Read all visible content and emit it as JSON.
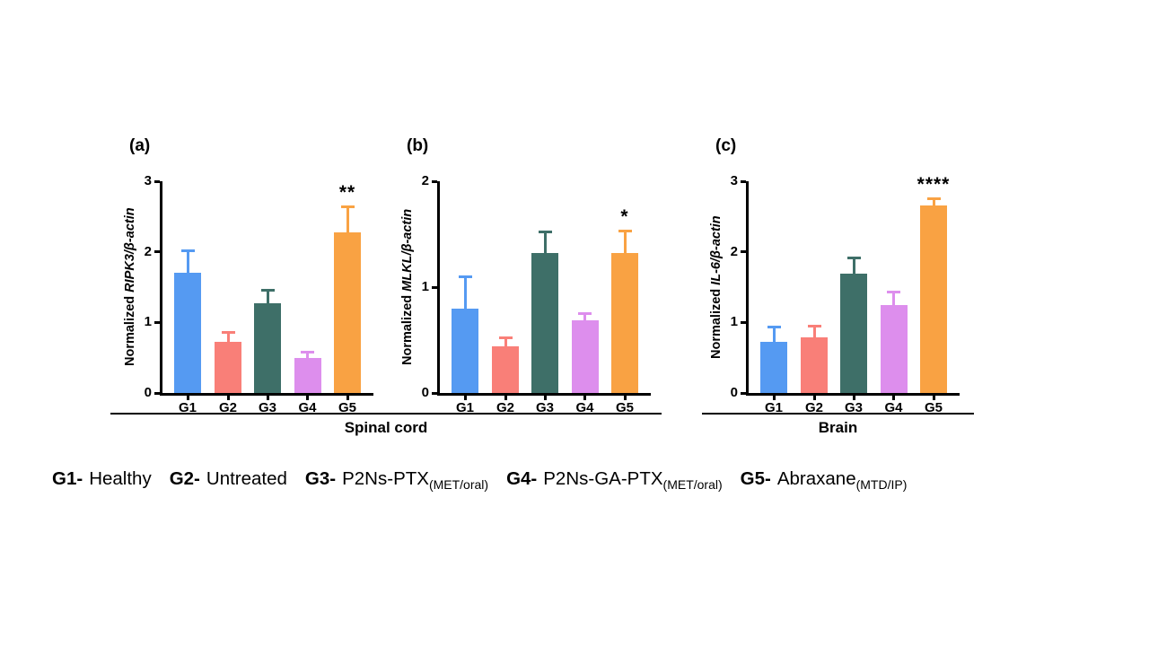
{
  "figure": {
    "group_labels": [
      {
        "label": "Spinal cord"
      },
      {
        "label": "Brain"
      }
    ],
    "legend": {
      "items": [
        {
          "code": "G1-",
          "name": "Healthy",
          "subscript": ""
        },
        {
          "code": "G2-",
          "name": "Untreated",
          "subscript": ""
        },
        {
          "code": "G3-",
          "name": "P2Ns-PTX",
          "subscript": "(MET/oral)"
        },
        {
          "code": "G4-",
          "name": "P2Ns-GA-PTX",
          "subscript": "(MET/oral)"
        },
        {
          "code": "G5-",
          "name": "Abraxane",
          "subscript": "(MTD/IP)"
        }
      ]
    },
    "colors": {
      "g1_blue": "#559AF2",
      "g2_salmon": "#F97F78",
      "g3_teal": "#3E6F68",
      "g4_violet": "#DD8EED",
      "g5_orange": "#F9A243",
      "axis": "#000000"
    }
  },
  "chart_data": [
    {
      "type": "bar",
      "panel_label": "(a)",
      "ylabel": "Normalized RIPK3/β-actin",
      "ylabel_prefix": "Normalized ",
      "ylabel_italic": "RIPK3/β-actin",
      "group": "Spinal cord",
      "categories": [
        "G1",
        "G2",
        "G3",
        "G4",
        "G5"
      ],
      "values": [
        1.7,
        0.72,
        1.27,
        0.5,
        2.27
      ],
      "errors_up": [
        0.34,
        0.16,
        0.21,
        0.1,
        0.39
      ],
      "bar_colors": [
        "#559AF2",
        "#F97F78",
        "#3E6F68",
        "#DD8EED",
        "#F9A243"
      ],
      "ylim": [
        0,
        3
      ],
      "yticks": [
        0,
        1,
        2,
        3
      ],
      "significance": {
        "index": 4,
        "label": "**"
      }
    },
    {
      "type": "bar",
      "panel_label": "(b)",
      "ylabel": "Normalized MLKL/β-actin",
      "ylabel_prefix": "Normalized ",
      "ylabel_italic": "MLKL/β-actin",
      "group": "Spinal cord",
      "categories": [
        "G1",
        "G2",
        "G3",
        "G4",
        "G5"
      ],
      "values": [
        0.8,
        0.44,
        1.32,
        0.69,
        1.32
      ],
      "errors_up": [
        0.31,
        0.09,
        0.21,
        0.07,
        0.22
      ],
      "bar_colors": [
        "#559AF2",
        "#F97F78",
        "#3E6F68",
        "#DD8EED",
        "#F9A243"
      ],
      "ylim": [
        0,
        2
      ],
      "yticks": [
        0,
        1,
        2
      ],
      "significance": {
        "index": 4,
        "label": "*"
      }
    },
    {
      "type": "bar",
      "panel_label": "(c)",
      "ylabel": "Normalized IL-6/β-actin",
      "ylabel_prefix": "Normalized ",
      "ylabel_italic": "IL-6/β-actin",
      "group": "Brain",
      "categories": [
        "G1",
        "G2",
        "G3",
        "G4",
        "G5"
      ],
      "values": [
        0.73,
        0.79,
        1.69,
        1.25,
        2.66
      ],
      "errors_up": [
        0.22,
        0.18,
        0.24,
        0.2,
        0.11
      ],
      "bar_colors": [
        "#559AF2",
        "#F97F78",
        "#3E6F68",
        "#DD8EED",
        "#F9A243"
      ],
      "ylim": [
        0,
        3
      ],
      "yticks": [
        0,
        1,
        2,
        3
      ],
      "significance": {
        "index": 4,
        "label": "****"
      }
    }
  ]
}
